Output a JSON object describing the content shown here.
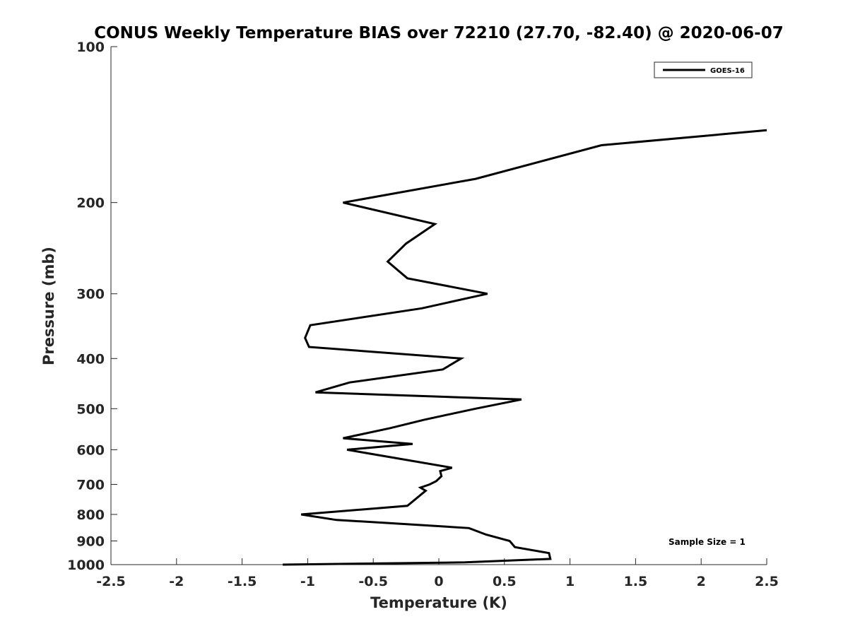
{
  "chart_data": {
    "type": "line",
    "title": "CONUS Weekly Temperature BIAS over 72210 (27.70, -82.40) @ 2020-06-07",
    "xlabel": "Temperature (K)",
    "ylabel": "Pressure (mb)",
    "xlim": [
      -2.5,
      2.5
    ],
    "ylim": [
      1000,
      100
    ],
    "yscale": "log",
    "x_ticks": [
      -2.5,
      -2,
      -1.5,
      -1,
      -0.5,
      0,
      0.5,
      1,
      1.5,
      2,
      2.5
    ],
    "x_tick_labels": [
      "-2.5",
      "-2",
      "-1.5",
      "-1",
      "-0.5",
      "0",
      "0.5",
      "1",
      "1.5",
      "2",
      "2.5"
    ],
    "y_ticks": [
      100,
      200,
      300,
      400,
      500,
      600,
      700,
      800,
      900,
      1000
    ],
    "y_tick_labels": [
      "100",
      "200",
      "300",
      "400",
      "500",
      "600",
      "700",
      "800",
      "900",
      "1000"
    ],
    "grid": false,
    "legend": {
      "position": "top-right",
      "entries": [
        "GOES-16"
      ]
    },
    "annotation": "Sample Size = 1",
    "series": [
      {
        "name": "GOES-16",
        "color": "#000000",
        "points": [
          {
            "x": 2.5,
            "p": 145
          },
          {
            "x": 1.24,
            "p": 155
          },
          {
            "x": 0.28,
            "p": 180
          },
          {
            "x": -0.73,
            "p": 200
          },
          {
            "x": -0.03,
            "p": 220
          },
          {
            "x": -0.25,
            "p": 240
          },
          {
            "x": -0.39,
            "p": 260
          },
          {
            "x": -0.24,
            "p": 280
          },
          {
            "x": 0.37,
            "p": 300
          },
          {
            "x": -0.13,
            "p": 320
          },
          {
            "x": -0.98,
            "p": 345
          },
          {
            "x": -1.02,
            "p": 365
          },
          {
            "x": -0.99,
            "p": 380
          },
          {
            "x": 0.17,
            "p": 400
          },
          {
            "x": 0.03,
            "p": 420
          },
          {
            "x": -0.68,
            "p": 445
          },
          {
            "x": -0.94,
            "p": 465
          },
          {
            "x": 0.63,
            "p": 480
          },
          {
            "x": 0.28,
            "p": 500
          },
          {
            "x": -0.11,
            "p": 525
          },
          {
            "x": -0.37,
            "p": 545
          },
          {
            "x": -0.73,
            "p": 570
          },
          {
            "x": -0.2,
            "p": 585
          },
          {
            "x": -0.7,
            "p": 600
          },
          {
            "x": 0.1,
            "p": 650
          },
          {
            "x": 0.01,
            "p": 660
          },
          {
            "x": 0.02,
            "p": 675
          },
          {
            "x": -0.02,
            "p": 690
          },
          {
            "x": -0.07,
            "p": 700
          },
          {
            "x": -0.14,
            "p": 710
          },
          {
            "x": -0.1,
            "p": 720
          },
          {
            "x": -0.24,
            "p": 770
          },
          {
            "x": -1.05,
            "p": 800
          },
          {
            "x": -0.78,
            "p": 820
          },
          {
            "x": -0.42,
            "p": 830
          },
          {
            "x": 0.23,
            "p": 850
          },
          {
            "x": 0.36,
            "p": 875
          },
          {
            "x": 0.54,
            "p": 900
          },
          {
            "x": 0.58,
            "p": 925
          },
          {
            "x": 0.84,
            "p": 950
          },
          {
            "x": 0.85,
            "p": 975
          },
          {
            "x": 0.2,
            "p": 990
          },
          {
            "x": -1.19,
            "p": 1000
          }
        ]
      }
    ]
  }
}
